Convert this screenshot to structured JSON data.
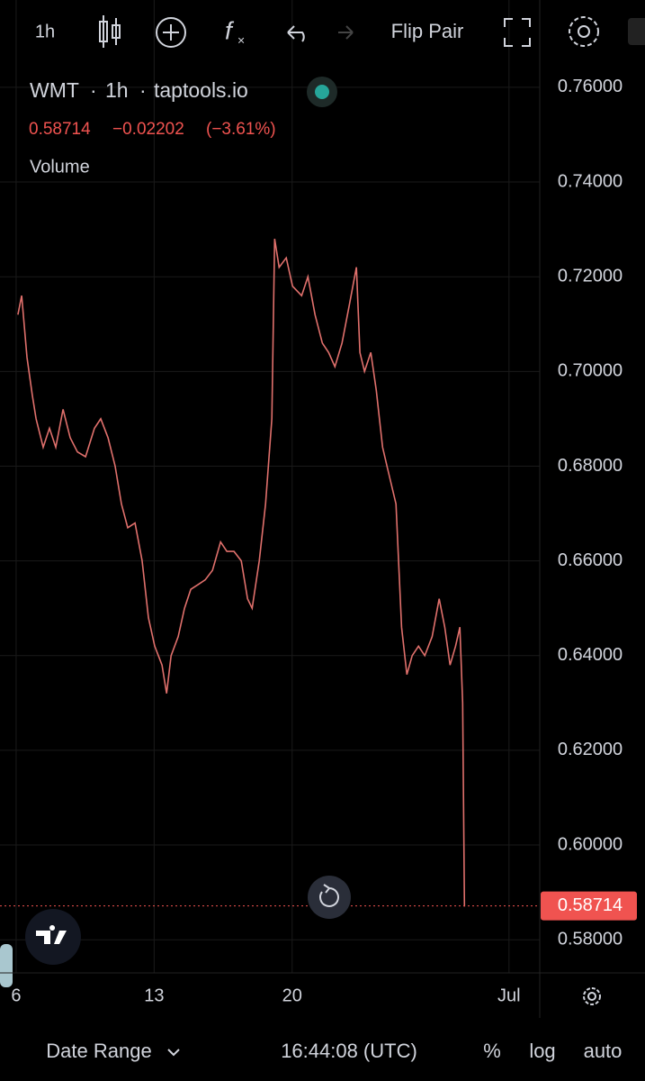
{
  "ui": {
    "interval": "1h",
    "flip": "Flip Pair",
    "date_range": "Date Range",
    "clock": "16:44:08 (UTC)",
    "percent": "%",
    "log": "log",
    "auto": "auto"
  },
  "chart_data": {
    "type": "line",
    "symbol": "WMT",
    "interval": "1h",
    "source": "taptools.io",
    "last_price": 0.58714,
    "change": "−0.02202",
    "change_pct": "(−3.61%)",
    "study": "Volume",
    "color": "#e0706c",
    "last_color": "#f05350",
    "grid": true,
    "x": [
      6.09,
      6.28,
      6.55,
      6.82,
      7.01,
      7.37,
      7.69,
      8.01,
      8.38,
      8.74,
      9.11,
      9.52,
      9.97,
      10.29,
      10.66,
      11.02,
      11.34,
      11.66,
      12.03,
      12.39,
      12.71,
      13.03,
      13.4,
      13.63,
      13.86,
      14.22,
      14.54,
      14.86,
      15.23,
      15.59,
      15.96,
      16.37,
      16.69,
      17.05,
      17.42,
      17.74,
      17.97,
      18.33,
      18.65,
      18.97,
      19.11,
      19.34,
      19.7,
      20.02,
      20.48,
      20.8,
      21.16,
      21.53,
      21.85,
      22.17,
      22.53,
      22.9,
      23.26,
      23.44,
      23.67,
      23.99,
      24.27,
      24.59,
      24.81,
      25.04,
      25.27,
      25.55,
      25.82,
      26.09,
      26.41,
      26.73,
      27.1,
      27.46,
      27.74,
      28.01,
      28.29,
      28.51,
      28.65,
      28.74
    ],
    "values": [
      0.712,
      0.716,
      0.703,
      0.695,
      0.69,
      0.684,
      0.688,
      0.684,
      0.692,
      0.686,
      0.683,
      0.682,
      0.688,
      0.69,
      0.686,
      0.68,
      0.672,
      0.667,
      0.668,
      0.66,
      0.648,
      0.642,
      0.638,
      0.632,
      0.64,
      0.644,
      0.65,
      0.654,
      0.655,
      0.656,
      0.658,
      0.664,
      0.662,
      0.662,
      0.66,
      0.652,
      0.65,
      0.66,
      0.672,
      0.69,
      0.728,
      0.722,
      0.724,
      0.718,
      0.716,
      0.72,
      0.712,
      0.706,
      0.704,
      0.701,
      0.706,
      0.714,
      0.722,
      0.704,
      0.7,
      0.704,
      0.696,
      0.684,
      0.68,
      0.676,
      0.672,
      0.646,
      0.636,
      0.64,
      0.642,
      0.64,
      0.644,
      0.652,
      0.646,
      0.638,
      0.642,
      0.646,
      0.63,
      0.587
    ],
    "xlim": [
      5.18,
      32.56
    ],
    "xticks": [
      6,
      13,
      20,
      {
        "value": 31,
        "label": "Jul"
      }
    ],
    "ylim": [
      0.573,
      0.7655
    ],
    "yticks": [
      {
        "value": 0.58,
        "label": "0.58000"
      },
      {
        "value": 0.6,
        "label": "0.60000"
      },
      {
        "value": 0.62,
        "label": "0.62000"
      },
      {
        "value": 0.64,
        "label": "0.64000"
      },
      {
        "value": 0.66,
        "label": "0.66000"
      },
      {
        "value": 0.68,
        "label": "0.68000"
      },
      {
        "value": 0.7,
        "label": "0.70000"
      },
      {
        "value": 0.72,
        "label": "0.72000"
      },
      {
        "value": 0.74,
        "label": "0.74000"
      },
      {
        "value": 0.76,
        "label": "0.76000"
      }
    ]
  }
}
